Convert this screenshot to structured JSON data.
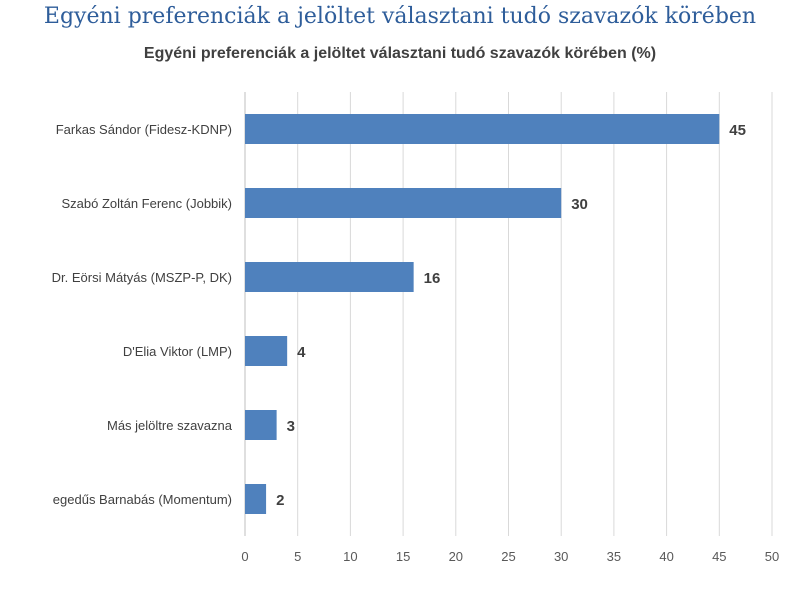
{
  "page": {
    "title": "Egyéni preferenciák a jelöltet választani tudó szavazók körében"
  },
  "chart_data": {
    "type": "bar",
    "orientation": "horizontal",
    "title": "Egyéni preferenciák a jelöltet választani tudó szavazók körében (%)",
    "categories": [
      "Farkas Sándor (Fidesz-KDNP)",
      "Szabó Zoltán Ferenc (Jobbik)",
      "Dr. Eörsi Mátyás  (MSZP-P, DK)",
      "D'Elia Viktor (LMP)",
      "Más jelöltre szavazna",
      "egedűs Barnabás (Momentum)"
    ],
    "values": [
      45,
      30,
      16,
      4,
      3,
      2
    ],
    "data_labels": [
      "45",
      "30",
      "16",
      "4",
      "3",
      "2"
    ],
    "xlim": [
      0,
      50
    ],
    "ticks": [
      0,
      5,
      10,
      15,
      20,
      25,
      30,
      35,
      40,
      45,
      50
    ],
    "tick_labels": [
      "0",
      "5",
      "10",
      "15",
      "20",
      "25",
      "30",
      "35",
      "40",
      "45",
      "50"
    ],
    "grid": true,
    "legend": "none",
    "bar_color": "#4F81BD",
    "grid_color": "#D9D9D9"
  }
}
